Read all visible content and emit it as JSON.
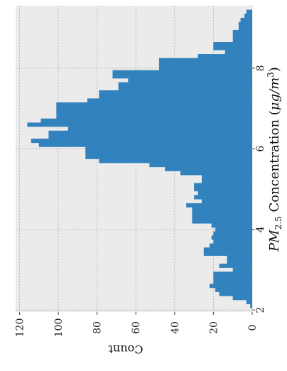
{
  "chart_data": {
    "type": "bar",
    "orientation": "rotated-90-clockwise",
    "title": "",
    "xlabel": "PM_{2.5} Concentration (μg/m^3)",
    "xlabel_parts": {
      "main": "PM",
      "sub": "2.5",
      "mid": " Concentration (",
      "unit_mu": "μ",
      "unit_slash": "g/m",
      "unit_sup": "3",
      "close": ")"
    },
    "ylabel": "Count",
    "xlim": [
      1.95,
      9.55
    ],
    "ylim": [
      0,
      122
    ],
    "xticks": [
      2,
      4,
      6,
      8
    ],
    "yticks": [
      0,
      20,
      40,
      60,
      80,
      100,
      120
    ],
    "grid": true,
    "bar_color": "#3182bd",
    "bin_width": 0.1,
    "bin_starts": [
      2.05,
      2.15,
      2.25,
      2.35,
      2.45,
      2.55,
      2.65,
      2.75,
      2.85,
      2.95,
      3.05,
      3.15,
      3.25,
      3.35,
      3.45,
      3.55,
      3.65,
      3.75,
      3.85,
      3.95,
      4.05,
      4.15,
      4.25,
      4.35,
      4.45,
      4.55,
      4.65,
      4.75,
      4.85,
      4.95,
      5.05,
      5.15,
      5.25,
      5.35,
      5.45,
      5.55,
      5.65,
      5.75,
      5.85,
      5.95,
      6.05,
      6.15,
      6.25,
      6.35,
      6.45,
      6.55,
      6.65,
      6.75,
      6.85,
      6.95,
      7.05,
      7.15,
      7.25,
      7.35,
      7.45,
      7.55,
      7.65,
      7.75,
      7.85,
      7.95,
      8.05,
      8.15,
      8.25,
      8.35,
      8.45,
      8.55,
      8.65,
      8.75,
      8.85,
      8.95,
      9.05,
      9.15,
      9.25,
      9.35
    ],
    "counts": [
      1,
      3,
      10,
      17,
      19,
      22,
      20,
      20,
      20,
      10,
      17,
      13,
      13,
      25,
      25,
      22,
      20,
      21,
      20,
      19,
      21,
      31,
      31,
      31,
      31,
      34,
      26,
      30,
      28,
      30,
      30,
      26,
      26,
      37,
      45,
      53,
      79,
      86,
      86,
      86,
      110,
      114,
      105,
      105,
      95,
      116,
      109,
      101,
      101,
      101,
      101,
      85,
      79,
      79,
      69,
      69,
      64,
      72,
      72,
      48,
      48,
      48,
      28,
      14,
      20,
      20,
      10,
      10,
      10,
      7,
      7,
      6,
      4,
      3
    ]
  }
}
